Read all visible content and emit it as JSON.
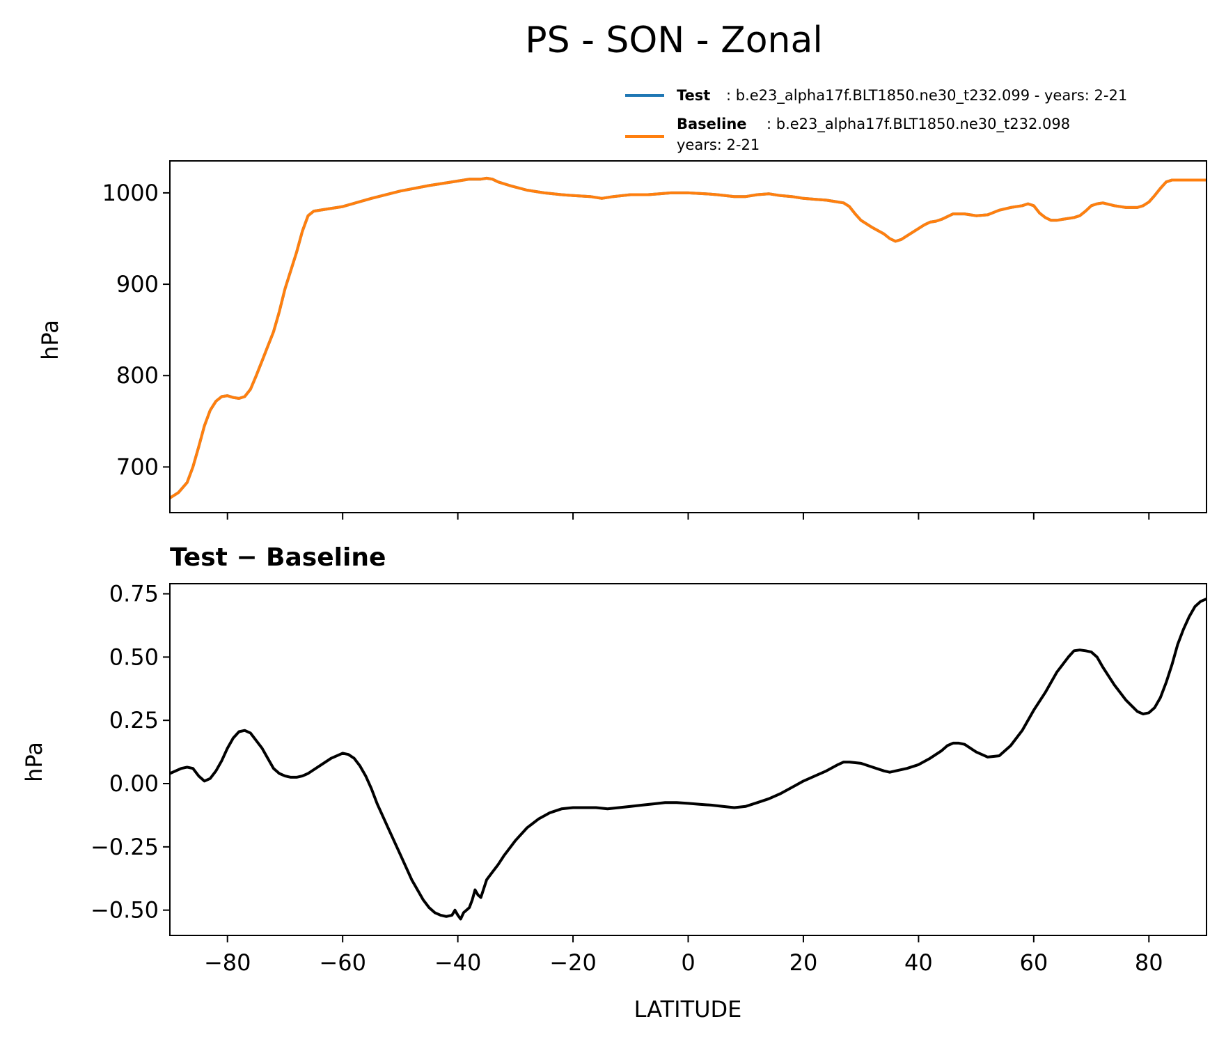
{
  "title": "PS - SON - Zonal",
  "legend": {
    "test_bold": "Test",
    "test_text": ": b.e23_alpha17f.BLT1850.ne30_t232.099 - years: 2-21",
    "baseline_bold": "Baseline",
    "baseline_text": ": b.e23_alpha17f.BLT1850.ne30_t232.098",
    "baseline_text2": "years: 2-21"
  },
  "chart_data": [
    {
      "type": "line",
      "xlabel": "",
      "ylabel": "hPa",
      "xlim": [
        -90,
        90
      ],
      "ylim": [
        650,
        1035
      ],
      "yticks": [
        700,
        800,
        900,
        1000
      ],
      "ytick_labels": [
        "700",
        "800",
        "900",
        "1000"
      ],
      "xticks": [
        -80,
        -60,
        -40,
        -20,
        0,
        20,
        40,
        60,
        80
      ],
      "grid": false,
      "legend_position": "above-right",
      "colors": {
        "Test": "#1f77b4",
        "Baseline": "#ff7f0e"
      },
      "x": [
        -90,
        -88.5,
        -87,
        -86,
        -85,
        -84,
        -83,
        -82,
        -81,
        -80,
        -79,
        -78,
        -77,
        -76,
        -75,
        -74,
        -73,
        -72,
        -71,
        -70,
        -69,
        -68,
        -67,
        -66,
        -65,
        -63,
        -60,
        -55,
        -50,
        -45,
        -42,
        -40,
        -38,
        -36,
        -35,
        -34,
        -33,
        -31,
        -28,
        -25,
        -22,
        -20,
        -17,
        -15,
        -13,
        -10,
        -7,
        -5,
        -3,
        0,
        3,
        5,
        8,
        10,
        12,
        14,
        16,
        18,
        20,
        22,
        24,
        26,
        27,
        28,
        29,
        30,
        32,
        34,
        35,
        36,
        37,
        38,
        39,
        40,
        41,
        42,
        43,
        44,
        46,
        48,
        50,
        52,
        54,
        56,
        58,
        59,
        60,
        61,
        62,
        63,
        64,
        65,
        66,
        67,
        68,
        69,
        70,
        71,
        72,
        74,
        76,
        78,
        79,
        80,
        81,
        82,
        83,
        84,
        85,
        86,
        87,
        88,
        89,
        90
      ],
      "series": [
        {
          "name": "Test",
          "values": [
            666,
            672,
            683,
            700,
            722,
            745,
            762,
            772,
            777,
            778,
            776,
            775,
            777,
            785,
            800,
            816,
            832,
            848,
            870,
            895,
            915,
            935,
            958,
            975,
            980,
            982,
            985,
            994,
            1002,
            1008,
            1011,
            1013,
            1015,
            1015,
            1016,
            1015,
            1012,
            1008,
            1003,
            1000,
            998,
            997,
            996,
            994,
            996,
            998,
            998,
            999,
            1000,
            1000,
            999,
            998,
            996,
            996,
            998,
            999,
            997,
            996,
            994,
            993,
            992,
            990,
            989,
            985,
            977,
            970,
            962,
            955,
            950,
            947,
            949,
            953,
            957,
            961,
            965,
            968,
            969,
            971,
            977,
            977,
            975,
            976,
            981,
            984,
            986,
            988,
            986,
            978,
            973,
            970,
            970,
            971,
            972,
            973,
            975,
            980,
            986,
            988,
            989,
            986,
            984,
            984,
            986,
            990,
            997,
            1005,
            1012,
            1014,
            1014,
            1014,
            1014,
            1014,
            1014,
            1014
          ]
        },
        {
          "name": "Baseline",
          "values": [
            666,
            672,
            683,
            700,
            722,
            745,
            762,
            772,
            777,
            778,
            776,
            775,
            777,
            785,
            800,
            816,
            832,
            848,
            870,
            895,
            915,
            935,
            958,
            975,
            980,
            982,
            985,
            994,
            1002,
            1008,
            1011,
            1013,
            1015,
            1015,
            1016,
            1015,
            1012,
            1008,
            1003,
            1000,
            998,
            997,
            996,
            994,
            996,
            998,
            998,
            999,
            1000,
            1000,
            999,
            998,
            996,
            996,
            998,
            999,
            997,
            996,
            994,
            993,
            992,
            990,
            989,
            985,
            977,
            970,
            962,
            955,
            950,
            947,
            949,
            953,
            957,
            961,
            965,
            968,
            969,
            971,
            977,
            977,
            975,
            976,
            981,
            984,
            986,
            988,
            986,
            978,
            973,
            970,
            970,
            971,
            972,
            973,
            975,
            980,
            986,
            988,
            989,
            986,
            984,
            984,
            986,
            990,
            997,
            1005,
            1012,
            1014,
            1014,
            1014,
            1014,
            1014,
            1014,
            1014
          ]
        }
      ]
    },
    {
      "type": "line",
      "title": "Test − Baseline",
      "xlabel": "LATITUDE",
      "ylabel": "hPa",
      "xlim": [
        -90,
        90
      ],
      "ylim": [
        -0.6,
        0.79
      ],
      "yticks": [
        -0.5,
        -0.25,
        0.0,
        0.25,
        0.5,
        0.75
      ],
      "ytick_labels": [
        "−0.50",
        "−0.25",
        "0.00",
        "0.25",
        "0.50",
        "0.75"
      ],
      "xticks": [
        -80,
        -60,
        -40,
        -20,
        0,
        20,
        40,
        60,
        80
      ],
      "xtick_labels": [
        "−80",
        "−60",
        "−40",
        "−20",
        "0",
        "20",
        "40",
        "60",
        "80"
      ],
      "grid": false,
      "colors": {
        "difference": "#000000"
      },
      "x": [
        -90,
        -89,
        -88,
        -87,
        -86,
        -85,
        -84,
        -83,
        -82,
        -81,
        -80,
        -79,
        -78,
        -77,
        -76,
        -75,
        -74,
        -73,
        -72,
        -71,
        -70,
        -69,
        -68,
        -67,
        -66,
        -65,
        -64,
        -62,
        -60,
        -59,
        -58,
        -57,
        -56,
        -55,
        -54,
        -52,
        -50,
        -48,
        -46,
        -45,
        -44,
        -43,
        -42,
        -41,
        -40.5,
        -40,
        -39.5,
        -39,
        -38.5,
        -38,
        -37.5,
        -37,
        -36.5,
        -36,
        -35,
        -34,
        -33,
        -32,
        -31,
        -30,
        -28,
        -26,
        -24,
        -22,
        -20,
        -18,
        -16,
        -14,
        -12,
        -10,
        -8,
        -6,
        -4,
        -2,
        0,
        2,
        4,
        6,
        8,
        10,
        12,
        14,
        16,
        18,
        20,
        22,
        24,
        26,
        27,
        28,
        30,
        32,
        34,
        35,
        36,
        38,
        40,
        42,
        44,
        45,
        46,
        47,
        48,
        50,
        52,
        54,
        56,
        58,
        60,
        62,
        64,
        66,
        67,
        68,
        69,
        70,
        71,
        72,
        74,
        76,
        78,
        79,
        80,
        81,
        82,
        83,
        84,
        85,
        86,
        87,
        88,
        89,
        90
      ],
      "series": [
        {
          "name": "",
          "values": [
            0.04,
            0.05,
            0.06,
            0.065,
            0.06,
            0.03,
            0.01,
            0.02,
            0.05,
            0.09,
            0.14,
            0.18,
            0.205,
            0.21,
            0.2,
            0.17,
            0.14,
            0.1,
            0.06,
            0.04,
            0.03,
            0.025,
            0.025,
            0.03,
            0.04,
            0.055,
            0.07,
            0.1,
            0.12,
            0.115,
            0.1,
            0.07,
            0.03,
            -0.02,
            -0.08,
            -0.18,
            -0.28,
            -0.38,
            -0.46,
            -0.49,
            -0.51,
            -0.52,
            -0.525,
            -0.52,
            -0.5,
            -0.52,
            -0.535,
            -0.51,
            -0.5,
            -0.49,
            -0.46,
            -0.42,
            -0.44,
            -0.45,
            -0.38,
            -0.35,
            -0.32,
            -0.285,
            -0.255,
            -0.225,
            -0.175,
            -0.14,
            -0.115,
            -0.1,
            -0.095,
            -0.095,
            -0.095,
            -0.1,
            -0.095,
            -0.09,
            -0.085,
            -0.08,
            -0.075,
            -0.075,
            -0.078,
            -0.082,
            -0.085,
            -0.09,
            -0.095,
            -0.09,
            -0.075,
            -0.06,
            -0.04,
            -0.015,
            0.01,
            0.03,
            0.05,
            0.075,
            0.085,
            0.085,
            0.08,
            0.065,
            0.05,
            0.045,
            0.05,
            0.06,
            0.075,
            0.1,
            0.13,
            0.15,
            0.16,
            0.16,
            0.155,
            0.125,
            0.105,
            0.11,
            0.15,
            0.21,
            0.29,
            0.36,
            0.44,
            0.5,
            0.525,
            0.528,
            0.525,
            0.52,
            0.5,
            0.46,
            0.39,
            0.33,
            0.285,
            0.275,
            0.28,
            0.3,
            0.34,
            0.4,
            0.47,
            0.55,
            0.61,
            0.66,
            0.7,
            0.72,
            0.73
          ]
        }
      ]
    }
  ]
}
